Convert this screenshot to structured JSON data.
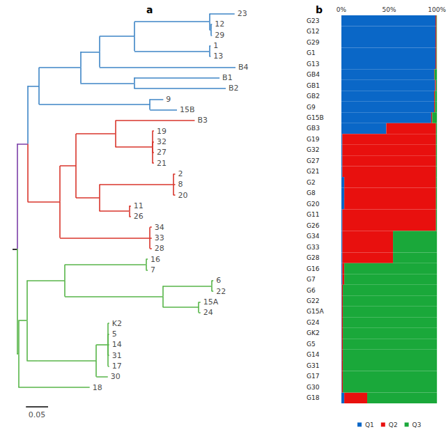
{
  "chart_data": [
    {
      "type": "tree",
      "title": "a",
      "scale_bar": 0.05,
      "tree": {
        "length": 0.01,
        "color": "#000000",
        "children": [
          {
            "length": 0.024,
            "color": "#7b3fa8",
            "children": [
              {
                "length": 0.026,
                "color": "#3d85c6",
                "children": [
                  {
                    "length": 0.093,
                    "children": [
                      {
                        "length": 0.043,
                        "children": [
                          {
                            "length": 0.079,
                            "children": [
                              {
                                "length": 0.169,
                                "children": [
                                  {
                                    "label": "23",
                                    "length": 0.057
                                  },
                                  {
                                    "length": 0.003,
                                    "children": [
                                      {
                                        "label": "12",
                                        "length": 0.003
                                      },
                                      {
                                        "label": "29",
                                        "length": 0.003
                                      }
                                    ]
                                  }
                                ]
                              },
                              {
                                "length": 0.169,
                                "children": [
                                  {
                                    "label": "1",
                                    "length": 0.003
                                  },
                                  {
                                    "label": "13",
                                    "length": 0.003
                                  }
                                ]
                              }
                            ]
                          },
                          {
                            "label": "B4",
                            "length": 0.307
                          }
                        ]
                      },
                      {
                        "length": 0.121,
                        "children": [
                          {
                            "label": "B1",
                            "length": 0.193
                          },
                          {
                            "label": "B2",
                            "length": 0.207
                          }
                        ]
                      }
                    ]
                  },
                  {
                    "length": 0.25,
                    "children": [
                      {
                        "label": "9",
                        "length": 0.03
                      },
                      {
                        "label": "15B",
                        "length": 0.061
                      }
                    ]
                  }
                ]
              },
              {
                "length": 0.073,
                "color": "#d9352b",
                "children": [
                  {
                    "length": 0.036,
                    "children": [
                      {
                        "length": 0.089,
                        "children": [
                          {
                            "label": "B3",
                            "length": 0.179
                          },
                          {
                            "length": 0.083,
                            "children": [
                              {
                                "label": "19",
                                "length": 0.004
                              },
                              {
                                "label": "32",
                                "length": 0.004
                              },
                              {
                                "label": "27",
                                "length": 0.004
                              },
                              {
                                "label": "21",
                                "length": 0.004
                              }
                            ]
                          }
                        ]
                      },
                      {
                        "length": 0.053,
                        "children": [
                          {
                            "length": 0.167,
                            "children": [
                              {
                                "label": "2",
                                "length": 0.004
                              },
                              {
                                "label": "8",
                                "length": 0.004
                              },
                              {
                                "label": "20",
                                "length": 0.004
                              }
                            ]
                          },
                          {
                            "length": 0.067,
                            "children": [
                              {
                                "label": "11",
                                "length": 0.004
                              },
                              {
                                "label": "26",
                                "length": 0.004
                              }
                            ]
                          }
                        ]
                      }
                    ]
                  },
                  {
                    "length": 0.203,
                    "children": [
                      {
                        "label": "34",
                        "length": 0.004
                      },
                      {
                        "label": "33",
                        "length": 0.004
                      },
                      {
                        "label": "28",
                        "length": 0.004
                      }
                    ]
                  }
                ]
              }
            ]
          },
          {
            "length": 0.003,
            "color": "#57b548",
            "children": [
              {
                "length": 0.019,
                "children": [
                  {
                    "length": 0.086,
                    "children": [
                      {
                        "length": 0.183,
                        "children": [
                          {
                            "label": "16",
                            "length": 0.004
                          },
                          {
                            "label": "7",
                            "length": 0.004
                          }
                        ]
                      },
                      {
                        "length": 0.221,
                        "children": [
                          {
                            "length": 0.11,
                            "children": [
                              {
                                "label": "6",
                                "length": 0.004
                              },
                              {
                                "label": "22",
                                "length": 0.004
                              }
                            ]
                          },
                          {
                            "length": 0.081,
                            "children": [
                              {
                                "label": "15A",
                                "length": 0.004
                              },
                              {
                                "label": "24",
                                "length": 0.004
                              }
                            ]
                          }
                        ]
                      }
                    ]
                  },
                  {
                    "length": 0.026,
                    "children": [
                      {
                        "length": 0.131,
                        "children": [
                          {
                            "length": 0.026,
                            "children": [
                              {
                                "label": "K2",
                                "length": 0.003
                              },
                              {
                                "label": "5",
                                "length": 0.003
                              },
                              {
                                "label": "14",
                                "length": 0.003
                              },
                              {
                                "label": "31",
                                "length": 0.003
                              },
                              {
                                "label": "17",
                                "length": 0.003
                              }
                            ]
                          },
                          {
                            "label": "30",
                            "length": 0.026
                          }
                        ]
                      }
                    ]
                  }
                ]
              },
              {
                "label": "18",
                "length": 0.161
              }
            ]
          }
        ]
      }
    },
    {
      "type": "bar",
      "title": "b",
      "orientation": "horizontal",
      "stacked": true,
      "legend": "bottom",
      "categories": [
        "G23",
        "G12",
        "G29",
        "G1",
        "G13",
        "GB4",
        "GB1",
        "GB2",
        "G9",
        "G15B",
        "GB3",
        "G19",
        "G32",
        "G27",
        "G21",
        "G2",
        "G8",
        "G20",
        "G11",
        "G26",
        "G34",
        "G33",
        "G28",
        "G16",
        "G7",
        "G6",
        "G22",
        "G15A",
        "G24",
        "GK2",
        "G5",
        "G14",
        "G31",
        "G17",
        "G30",
        "G18"
      ],
      "xlim": [
        0,
        100
      ],
      "xticks": [
        {
          "value": 0,
          "label": "0%"
        },
        {
          "value": 50,
          "label": "50%"
        },
        {
          "value": 100,
          "label": "100%"
        }
      ],
      "series": [
        {
          "name": "Q1",
          "color": "#0a67c7",
          "values": [
            98.5,
            98.5,
            98.5,
            98.5,
            98.5,
            97,
            98,
            97,
            97,
            94,
            47,
            1,
            1,
            1,
            1,
            3,
            3,
            3,
            1,
            1,
            1,
            1,
            1,
            1,
            1,
            0.5,
            0.5,
            0.5,
            0.5,
            0.5,
            0.5,
            0.5,
            0.5,
            0.5,
            0.5,
            3
          ]
        },
        {
          "name": "Q2",
          "color": "#e8100e",
          "values": [
            1,
            1,
            1,
            1,
            1,
            0.5,
            1,
            1,
            1,
            1,
            52,
            98,
            98,
            98,
            98,
            96,
            96,
            96,
            98,
            98,
            53,
            53,
            53,
            2,
            2,
            1,
            1,
            1,
            1,
            1,
            1,
            1,
            1,
            1,
            1,
            24
          ]
        },
        {
          "name": "Q3",
          "color": "#1aa83a",
          "values": [
            0.5,
            0.5,
            0.5,
            0.5,
            0.5,
            2.5,
            1,
            2,
            2,
            5,
            1,
            1,
            1,
            1,
            1,
            1,
            1,
            1,
            1,
            1,
            46,
            46,
            46,
            97,
            97,
            98.5,
            98.5,
            98.5,
            98.5,
            98.5,
            98.5,
            98.5,
            98.5,
            98.5,
            98.5,
            73
          ]
        }
      ]
    }
  ]
}
